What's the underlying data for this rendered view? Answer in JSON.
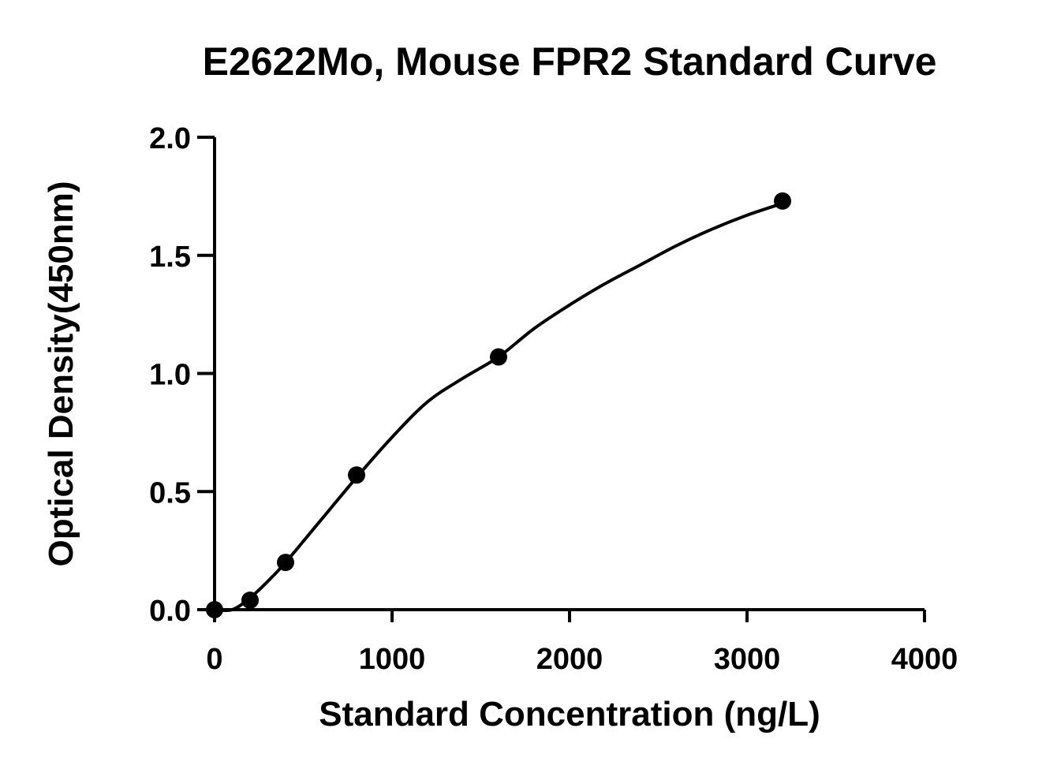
{
  "chart_data": {
    "type": "scatter",
    "title": "E2622Mo, Mouse FPR2 Standard Curve",
    "xlabel": "Standard Concentration (ng/L)",
    "ylabel": "Optical Density(450nm)",
    "xlim": [
      0,
      4000
    ],
    "ylim": [
      0,
      2.0
    ],
    "x_ticks": [
      0,
      1000,
      2000,
      3000,
      4000
    ],
    "x_tick_labels": [
      "0",
      "1000",
      "2000",
      "3000",
      "4000"
    ],
    "y_ticks": [
      0,
      0.5,
      1.0,
      1.5,
      2.0
    ],
    "y_tick_labels": [
      "0.0",
      "0.5",
      "1.0",
      "1.5",
      "2.0"
    ],
    "grid": false,
    "series": [
      {
        "x": [
          0,
          200,
          400,
          800,
          1600,
          3200
        ],
        "y": [
          0.0,
          0.04,
          0.2,
          0.57,
          1.07,
          1.73
        ]
      }
    ],
    "fit_curve": {
      "x": [
        0,
        100,
        200,
        300,
        400,
        600,
        800,
        1000,
        1200,
        1400,
        1600,
        1800,
        2000,
        2200,
        2400,
        2600,
        2800,
        3000,
        3200
      ],
      "y": [
        0.0,
        0.0,
        0.05,
        0.12,
        0.2,
        0.38,
        0.56,
        0.73,
        0.88,
        0.98,
        1.07,
        1.19,
        1.29,
        1.38,
        1.46,
        1.54,
        1.61,
        1.67,
        1.72
      ]
    },
    "colors": {
      "points": "#000000",
      "curve": "#000000",
      "axes": "#000000",
      "background": "#ffffff"
    }
  }
}
